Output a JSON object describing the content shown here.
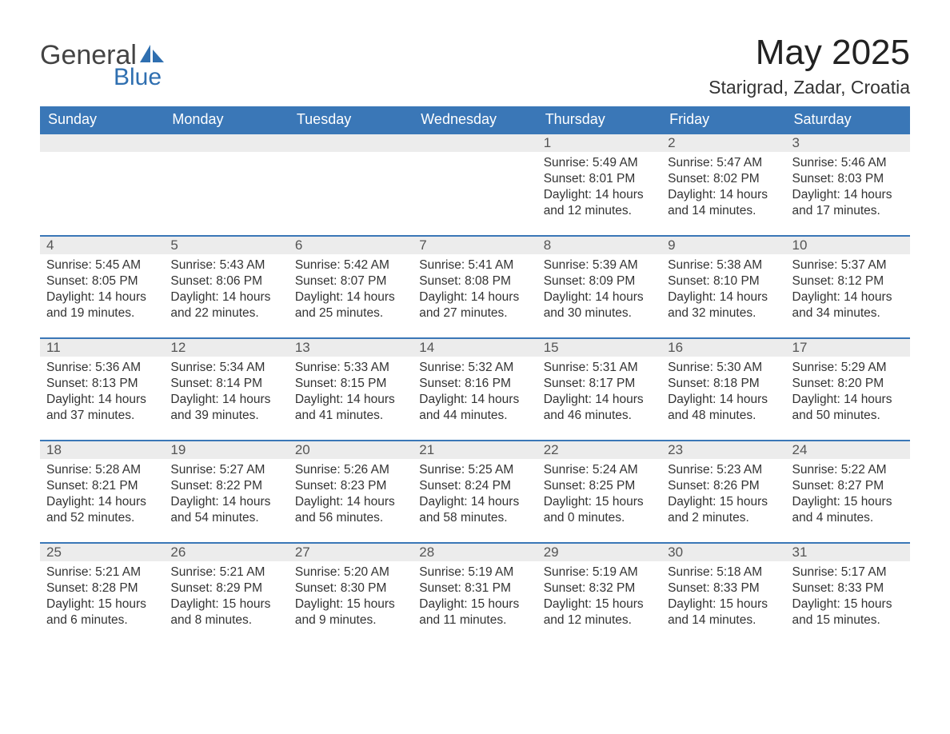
{
  "brand": {
    "word1": "General",
    "word2": "Blue",
    "text_color": "#444444",
    "accent_color": "#2f6fb0"
  },
  "title": "May 2025",
  "location": "Starigrad, Zadar, Croatia",
  "columns": [
    "Sunday",
    "Monday",
    "Tuesday",
    "Wednesday",
    "Thursday",
    "Friday",
    "Saturday"
  ],
  "colors": {
    "header_bg": "#3a77b7",
    "header_text": "#ffffff",
    "daynum_bg": "#ececec",
    "daynum_text": "#555555",
    "body_text": "#333333",
    "row_border": "#3a77b7",
    "page_bg": "#ffffff"
  },
  "weeks": [
    [
      {
        "empty": true
      },
      {
        "empty": true
      },
      {
        "empty": true
      },
      {
        "empty": true
      },
      {
        "day": "1",
        "sunrise": "Sunrise: 5:49 AM",
        "sunset": "Sunset: 8:01 PM",
        "daylight": "Daylight: 14 hours and 12 minutes."
      },
      {
        "day": "2",
        "sunrise": "Sunrise: 5:47 AM",
        "sunset": "Sunset: 8:02 PM",
        "daylight": "Daylight: 14 hours and 14 minutes."
      },
      {
        "day": "3",
        "sunrise": "Sunrise: 5:46 AM",
        "sunset": "Sunset: 8:03 PM",
        "daylight": "Daylight: 14 hours and 17 minutes."
      }
    ],
    [
      {
        "day": "4",
        "sunrise": "Sunrise: 5:45 AM",
        "sunset": "Sunset: 8:05 PM",
        "daylight": "Daylight: 14 hours and 19 minutes."
      },
      {
        "day": "5",
        "sunrise": "Sunrise: 5:43 AM",
        "sunset": "Sunset: 8:06 PM",
        "daylight": "Daylight: 14 hours and 22 minutes."
      },
      {
        "day": "6",
        "sunrise": "Sunrise: 5:42 AM",
        "sunset": "Sunset: 8:07 PM",
        "daylight": "Daylight: 14 hours and 25 minutes."
      },
      {
        "day": "7",
        "sunrise": "Sunrise: 5:41 AM",
        "sunset": "Sunset: 8:08 PM",
        "daylight": "Daylight: 14 hours and 27 minutes."
      },
      {
        "day": "8",
        "sunrise": "Sunrise: 5:39 AM",
        "sunset": "Sunset: 8:09 PM",
        "daylight": "Daylight: 14 hours and 30 minutes."
      },
      {
        "day": "9",
        "sunrise": "Sunrise: 5:38 AM",
        "sunset": "Sunset: 8:10 PM",
        "daylight": "Daylight: 14 hours and 32 minutes."
      },
      {
        "day": "10",
        "sunrise": "Sunrise: 5:37 AM",
        "sunset": "Sunset: 8:12 PM",
        "daylight": "Daylight: 14 hours and 34 minutes."
      }
    ],
    [
      {
        "day": "11",
        "sunrise": "Sunrise: 5:36 AM",
        "sunset": "Sunset: 8:13 PM",
        "daylight": "Daylight: 14 hours and 37 minutes."
      },
      {
        "day": "12",
        "sunrise": "Sunrise: 5:34 AM",
        "sunset": "Sunset: 8:14 PM",
        "daylight": "Daylight: 14 hours and 39 minutes."
      },
      {
        "day": "13",
        "sunrise": "Sunrise: 5:33 AM",
        "sunset": "Sunset: 8:15 PM",
        "daylight": "Daylight: 14 hours and 41 minutes."
      },
      {
        "day": "14",
        "sunrise": "Sunrise: 5:32 AM",
        "sunset": "Sunset: 8:16 PM",
        "daylight": "Daylight: 14 hours and 44 minutes."
      },
      {
        "day": "15",
        "sunrise": "Sunrise: 5:31 AM",
        "sunset": "Sunset: 8:17 PM",
        "daylight": "Daylight: 14 hours and 46 minutes."
      },
      {
        "day": "16",
        "sunrise": "Sunrise: 5:30 AM",
        "sunset": "Sunset: 8:18 PM",
        "daylight": "Daylight: 14 hours and 48 minutes."
      },
      {
        "day": "17",
        "sunrise": "Sunrise: 5:29 AM",
        "sunset": "Sunset: 8:20 PM",
        "daylight": "Daylight: 14 hours and 50 minutes."
      }
    ],
    [
      {
        "day": "18",
        "sunrise": "Sunrise: 5:28 AM",
        "sunset": "Sunset: 8:21 PM",
        "daylight": "Daylight: 14 hours and 52 minutes."
      },
      {
        "day": "19",
        "sunrise": "Sunrise: 5:27 AM",
        "sunset": "Sunset: 8:22 PM",
        "daylight": "Daylight: 14 hours and 54 minutes."
      },
      {
        "day": "20",
        "sunrise": "Sunrise: 5:26 AM",
        "sunset": "Sunset: 8:23 PM",
        "daylight": "Daylight: 14 hours and 56 minutes."
      },
      {
        "day": "21",
        "sunrise": "Sunrise: 5:25 AM",
        "sunset": "Sunset: 8:24 PM",
        "daylight": "Daylight: 14 hours and 58 minutes."
      },
      {
        "day": "22",
        "sunrise": "Sunrise: 5:24 AM",
        "sunset": "Sunset: 8:25 PM",
        "daylight": "Daylight: 15 hours and 0 minutes."
      },
      {
        "day": "23",
        "sunrise": "Sunrise: 5:23 AM",
        "sunset": "Sunset: 8:26 PM",
        "daylight": "Daylight: 15 hours and 2 minutes."
      },
      {
        "day": "24",
        "sunrise": "Sunrise: 5:22 AM",
        "sunset": "Sunset: 8:27 PM",
        "daylight": "Daylight: 15 hours and 4 minutes."
      }
    ],
    [
      {
        "day": "25",
        "sunrise": "Sunrise: 5:21 AM",
        "sunset": "Sunset: 8:28 PM",
        "daylight": "Daylight: 15 hours and 6 minutes."
      },
      {
        "day": "26",
        "sunrise": "Sunrise: 5:21 AM",
        "sunset": "Sunset: 8:29 PM",
        "daylight": "Daylight: 15 hours and 8 minutes."
      },
      {
        "day": "27",
        "sunrise": "Sunrise: 5:20 AM",
        "sunset": "Sunset: 8:30 PM",
        "daylight": "Daylight: 15 hours and 9 minutes."
      },
      {
        "day": "28",
        "sunrise": "Sunrise: 5:19 AM",
        "sunset": "Sunset: 8:31 PM",
        "daylight": "Daylight: 15 hours and 11 minutes."
      },
      {
        "day": "29",
        "sunrise": "Sunrise: 5:19 AM",
        "sunset": "Sunset: 8:32 PM",
        "daylight": "Daylight: 15 hours and 12 minutes."
      },
      {
        "day": "30",
        "sunrise": "Sunrise: 5:18 AM",
        "sunset": "Sunset: 8:33 PM",
        "daylight": "Daylight: 15 hours and 14 minutes."
      },
      {
        "day": "31",
        "sunrise": "Sunrise: 5:17 AM",
        "sunset": "Sunset: 8:33 PM",
        "daylight": "Daylight: 15 hours and 15 minutes."
      }
    ]
  ]
}
